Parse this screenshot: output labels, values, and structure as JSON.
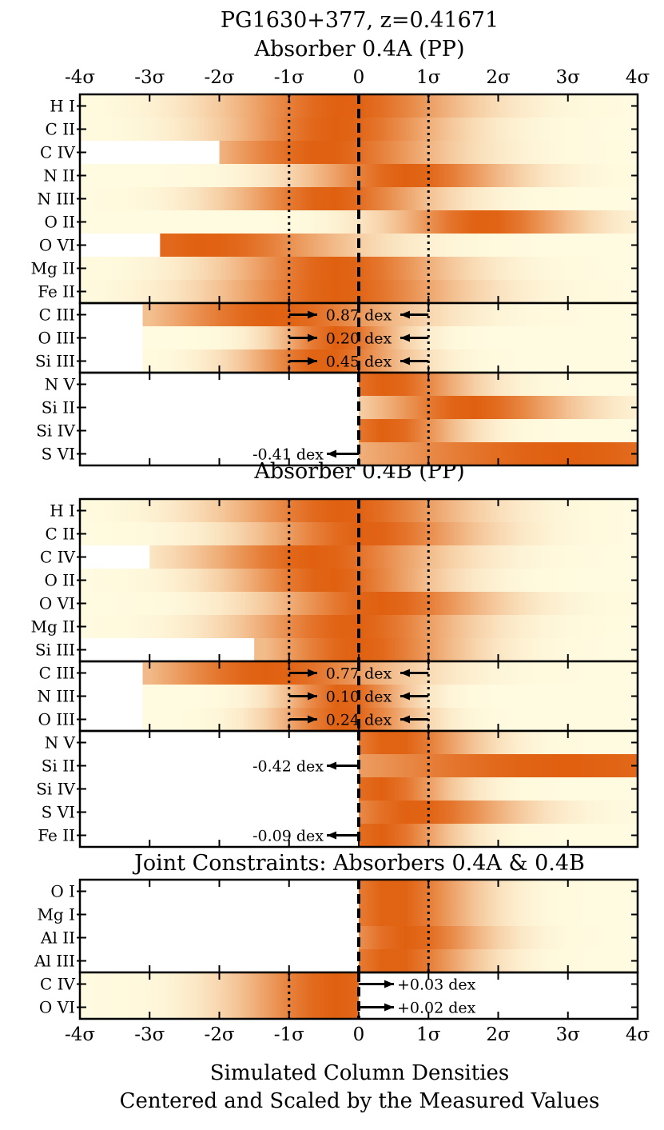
{
  "chart_data": {
    "type": "heatmap",
    "title": "PG1630+377, z=0.41671",
    "xlabel_line1": "Simulated Column Densities",
    "xlabel_line2": "Centered and Scaled by the Measured Values",
    "xlim": [
      -4,
      4
    ],
    "tick_values": [
      -4,
      -3,
      -2,
      -1,
      0,
      1,
      2,
      3,
      4
    ],
    "tick_labels": [
      "-4σ",
      "-3σ",
      "-2σ",
      "-1σ",
      "0",
      "1σ",
      "2σ",
      "3σ",
      "4σ"
    ],
    "colors": {
      "peak": "#e06010",
      "low": "#fffbe0",
      "frame": "#000000"
    },
    "panels": [
      {
        "title": "Absorber 0.4A (PP)",
        "groups": [
          {
            "kind": "detection",
            "rows": [
              {
                "label": "H I",
                "start": -4,
                "center": -0.2,
                "sigma": 1.2
              },
              {
                "label": "C II",
                "start": -4,
                "center": -0.3,
                "sigma": 1.1
              },
              {
                "label": "C IV",
                "start": -2.0,
                "center": -0.5,
                "sigma": 1.2
              },
              {
                "label": "N II",
                "start": -4,
                "center": 0.7,
                "sigma": 1.0
              },
              {
                "label": "N III",
                "start": -4,
                "center": -0.4,
                "sigma": 1.0
              },
              {
                "label": "O II",
                "start": -4,
                "center": 1.8,
                "sigma": 0.9
              },
              {
                "label": "O VI",
                "start": -2.85,
                "center": -2.2,
                "sigma": 1.4
              },
              {
                "label": "Mg II",
                "start": -4,
                "center": -0.3,
                "sigma": 1.1
              },
              {
                "label": "Fe II",
                "start": -4,
                "center": -0.3,
                "sigma": 1.2
              }
            ]
          },
          {
            "kind": "sat-center",
            "rows": [
              {
                "label": "C III",
                "start": -3.1,
                "center": -1.2,
                "sigma": 1.3,
                "annotation": "0.87 dex"
              },
              {
                "label": "O III",
                "start": -3.1,
                "center": -0.3,
                "sigma": 0.6,
                "annotation": "0.20 dex"
              },
              {
                "label": "Si III",
                "start": -3.1,
                "center": -0.5,
                "sigma": 0.8,
                "annotation": "0.45 dex"
              }
            ]
          },
          {
            "kind": "upper-limit",
            "rows": [
              {
                "label": "N V",
                "start": 0,
                "center": 0.4,
                "sigma": 0.8
              },
              {
                "label": "Si II",
                "start": 0,
                "center": 1.6,
                "sigma": 1.0
              },
              {
                "label": "Si IV",
                "start": 0,
                "center": 0.4,
                "sigma": 0.7
              },
              {
                "label": "S VI",
                "start": 0,
                "center": 3.0,
                "sigma": 2.5,
                "annotation": "-0.41 dex"
              }
            ]
          }
        ]
      },
      {
        "title": "Absorber 0.4B (PP)",
        "groups": [
          {
            "kind": "detection",
            "rows": [
              {
                "label": "H I",
                "start": -4,
                "center": -0.2,
                "sigma": 1.2
              },
              {
                "label": "C II",
                "start": -4,
                "center": 0.1,
                "sigma": 1.1
              },
              {
                "label": "C IV",
                "start": -3.0,
                "center": -0.6,
                "sigma": 1.2
              },
              {
                "label": "O II",
                "start": -4,
                "center": -0.4,
                "sigma": 1.0
              },
              {
                "label": "O VI",
                "start": -4,
                "center": 0.3,
                "sigma": 1.1
              },
              {
                "label": "Mg II",
                "start": -4,
                "center": -0.1,
                "sigma": 1.1
              },
              {
                "label": "Si III",
                "start": -1.5,
                "center": 0.0,
                "sigma": 1.0
              }
            ]
          },
          {
            "kind": "sat-center",
            "rows": [
              {
                "label": "C III",
                "start": -3.1,
                "center": -1.3,
                "sigma": 1.3,
                "annotation": "0.77 dex"
              },
              {
                "label": "N III",
                "start": -3.1,
                "center": -0.2,
                "sigma": 0.6,
                "annotation": "0.10 dex"
              },
              {
                "label": "O III",
                "start": -3.1,
                "center": -0.2,
                "sigma": 0.7,
                "annotation": "0.24 dex"
              }
            ]
          },
          {
            "kind": "upper-limit",
            "rows": [
              {
                "label": "N V",
                "start": 0,
                "center": 0.5,
                "sigma": 0.8
              },
              {
                "label": "Si II",
                "start": 0,
                "center": 3.0,
                "sigma": 3.0,
                "annotation": "-0.42 dex"
              },
              {
                "label": "Si IV",
                "start": 0,
                "center": 0.3,
                "sigma": 0.7
              },
              {
                "label": "S VI",
                "start": 0,
                "center": 0.8,
                "sigma": 1.0
              },
              {
                "label": "Fe II",
                "start": 0,
                "center": 0.3,
                "sigma": 0.7,
                "annotation": "-0.09 dex"
              }
            ]
          }
        ]
      },
      {
        "title": "Joint Constraints: Absorbers 0.4A & 0.4B",
        "groups": [
          {
            "kind": "upper-limit",
            "rows": [
              {
                "label": "O I",
                "start": 0,
                "center": 0.5,
                "sigma": 0.8
              },
              {
                "label": "Mg I",
                "start": 0,
                "center": 0.5,
                "sigma": 0.8
              },
              {
                "label": "Al II",
                "start": 0,
                "center": 0.7,
                "sigma": 0.8
              },
              {
                "label": "Al III",
                "start": 0,
                "center": 0.5,
                "sigma": 0.8
              }
            ]
          },
          {
            "kind": "lower-limit",
            "rows": [
              {
                "label": "C IV",
                "start": -4,
                "end": 0,
                "center": -0.3,
                "sigma": 1.0,
                "annotation": "+0.03 dex"
              },
              {
                "label": "O VI",
                "start": -4,
                "end": 0,
                "center": -0.3,
                "sigma": 1.0,
                "annotation": "+0.02 dex"
              }
            ]
          }
        ]
      }
    ]
  }
}
